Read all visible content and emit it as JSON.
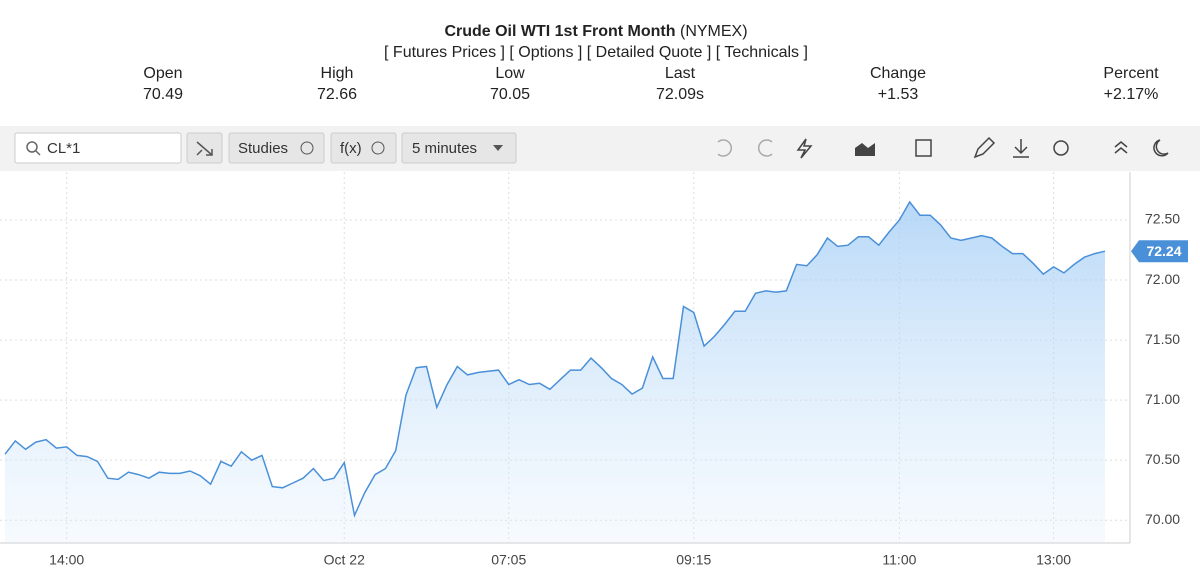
{
  "header": {
    "title": "Crude Oil WTI 1st Front Month",
    "exchange": "(NYMEX)",
    "links": [
      "[ Futures Prices ]",
      "[ Options ]",
      "[ Detailed Quote ]",
      "[ Technicals ]"
    ],
    "quote": [
      {
        "label": "Open",
        "value": "70.49"
      },
      {
        "label": "High",
        "value": "72.66"
      },
      {
        "label": "Low",
        "value": "70.05"
      },
      {
        "label": "Last",
        "value": "72.09s"
      },
      {
        "label": "Change",
        "value": "+1.53"
      },
      {
        "label": "Percent",
        "value": "+2.17%"
      }
    ]
  },
  "toolbar": {
    "symbol": "CL*1",
    "studies": "Studies",
    "fx": "f(x)",
    "interval": "5 minutes"
  },
  "chart_data": {
    "type": "area",
    "color": "#4a90d9",
    "grid": true,
    "categories": [
      null,
      null,
      null,
      null,
      null,
      null,
      "14:00",
      null,
      null,
      null,
      null,
      null,
      null,
      null,
      null,
      null,
      null,
      null,
      null,
      null,
      null,
      null,
      null,
      null,
      null,
      null,
      null,
      null,
      null,
      null,
      null,
      null,
      null,
      "Oct 22",
      null,
      null,
      null,
      null,
      null,
      null,
      null,
      null,
      null,
      null,
      null,
      null,
      null,
      null,
      null,
      "07:05",
      null,
      null,
      null,
      null,
      null,
      null,
      null,
      null,
      null,
      null,
      null,
      null,
      null,
      null,
      null,
      null,
      null,
      "09:15",
      null,
      null,
      null,
      null,
      null,
      null,
      null,
      null,
      null,
      null,
      null,
      null,
      null,
      null,
      null,
      null,
      null,
      null,
      null,
      "11:00",
      null,
      null,
      null,
      null,
      null,
      null,
      null,
      null,
      null,
      null,
      null,
      null,
      null,
      null,
      "13:00",
      null,
      null,
      null,
      null,
      null
    ],
    "values": [
      70.55,
      70.66,
      70.59,
      70.65,
      70.67,
      70.6,
      70.61,
      70.54,
      70.53,
      70.49,
      70.35,
      70.34,
      70.4,
      70.38,
      70.35,
      70.4,
      70.39,
      70.39,
      70.41,
      70.37,
      70.3,
      70.49,
      70.45,
      70.57,
      70.5,
      70.54,
      70.28,
      70.27,
      70.31,
      70.35,
      70.43,
      70.33,
      70.35,
      70.48,
      70.04,
      70.23,
      70.38,
      70.43,
      70.58,
      71.04,
      71.27,
      71.28,
      70.94,
      71.13,
      71.28,
      71.21,
      71.23,
      71.24,
      71.25,
      71.13,
      71.17,
      71.13,
      71.14,
      71.09,
      71.17,
      71.25,
      71.25,
      71.35,
      71.27,
      71.18,
      71.13,
      71.05,
      71.1,
      71.36,
      71.18,
      71.18,
      71.78,
      71.73,
      71.45,
      71.53,
      71.63,
      71.74,
      71.74,
      71.89,
      71.91,
      71.9,
      71.91,
      72.13,
      72.12,
      72.21,
      72.35,
      72.28,
      72.29,
      72.36,
      72.36,
      72.29,
      72.4,
      72.5,
      72.65,
      72.54,
      72.54,
      72.46,
      72.35,
      72.33,
      72.35,
      72.37,
      72.35,
      72.28,
      72.22,
      72.22,
      72.14,
      72.05,
      72.11,
      72.06,
      72.13,
      72.19,
      72.22,
      72.24
    ],
    "ylim": [
      69.81,
      72.9
    ],
    "yticks": [
      {
        "value": 70,
        "label": "70.00"
      },
      {
        "value": 70.5,
        "label": "70.50"
      },
      {
        "value": 71,
        "label": "71.00"
      },
      {
        "value": 71.5,
        "label": "71.50"
      },
      {
        "value": 72,
        "label": "72.00"
      },
      {
        "value": 72.5,
        "label": "72.50"
      }
    ]
  }
}
